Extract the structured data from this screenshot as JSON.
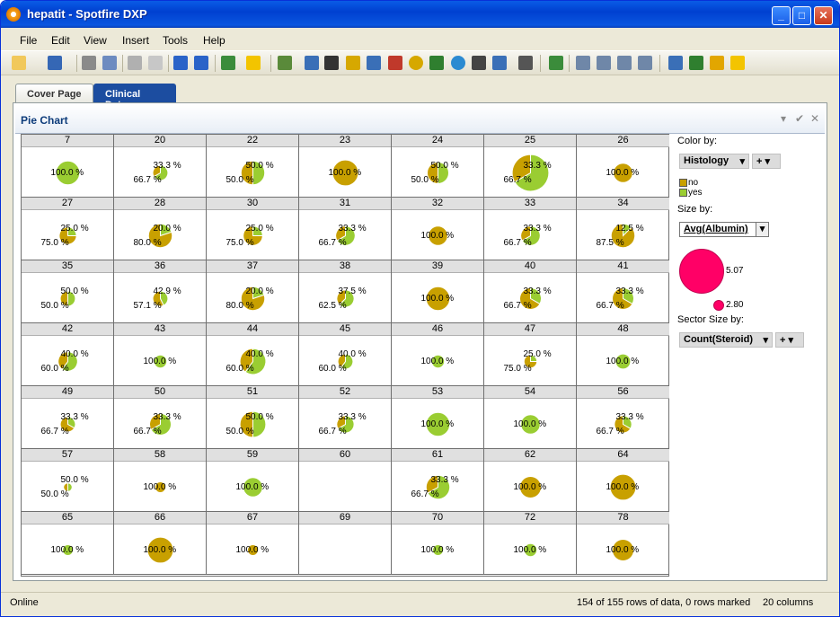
{
  "window": {
    "title": "hepatit - Spotfire DXP"
  },
  "menu": [
    "File",
    "Edit",
    "View",
    "Insert",
    "Tools",
    "Help"
  ],
  "tabs": [
    {
      "label": "Cover Page"
    },
    {
      "label": "Clinical Data"
    }
  ],
  "viz": {
    "title": "Pie Chart"
  },
  "legend": {
    "color_by": "Color by:",
    "color_column": "Histology",
    "categories": [
      {
        "label": "no",
        "color": "#c8a000"
      },
      {
        "label": "yes",
        "color": "#9acd32"
      }
    ],
    "size_by": "Size by:",
    "size_column": "Avg(Albumin)",
    "size_max": "5.07",
    "size_min": "2.80",
    "size_color": "#ff0066",
    "sector_by": "Sector Size by:",
    "sector_column": "Count(Steroid)"
  },
  "status": {
    "left": "Online",
    "rows": "154 of 155 rows of data, 0 rows marked",
    "cols": "20 columns"
  },
  "chart_data": {
    "type": "pie",
    "colors": {
      "no": "#c8a000",
      "yes": "#9acd32"
    },
    "panels": [
      {
        "id": "7",
        "no": 0,
        "yes": 100,
        "size": 0.55,
        "labels": [
          "100.0 %"
        ]
      },
      {
        "id": "20",
        "no": 33.3,
        "yes": 66.7,
        "size": 0.35,
        "labels": [
          "33.3 %",
          "66.7 %"
        ]
      },
      {
        "id": "22",
        "no": 50,
        "yes": 50,
        "size": 0.55,
        "labels": [
          "50.0 %",
          "50.0 %"
        ]
      },
      {
        "id": "23",
        "no": 100,
        "yes": 0,
        "size": 0.6,
        "labels": [
          "100.0 %"
        ]
      },
      {
        "id": "24",
        "no": 50,
        "yes": 50,
        "size": 0.5,
        "labels": [
          "50.0 %",
          "50.0 %"
        ]
      },
      {
        "id": "25",
        "no": 33.3,
        "yes": 66.7,
        "size": 0.85,
        "labels": [
          "33.3 %",
          "66.7 %"
        ]
      },
      {
        "id": "26",
        "no": 100,
        "yes": 0,
        "size": 0.45,
        "labels": [
          "100.0 %"
        ]
      },
      {
        "id": "27",
        "no": 75,
        "yes": 25,
        "size": 0.4,
        "labels": [
          "25.0 %",
          "75.0 %"
        ]
      },
      {
        "id": "28",
        "no": 80,
        "yes": 20,
        "size": 0.55,
        "labels": [
          "20.0 %",
          "80.0 %"
        ]
      },
      {
        "id": "30",
        "no": 75,
        "yes": 25,
        "size": 0.45,
        "labels": [
          "25.0 %",
          "75.0 %"
        ]
      },
      {
        "id": "31",
        "no": 33.3,
        "yes": 66.7,
        "size": 0.45,
        "labels": [
          "33.3 %",
          "66.7 %"
        ]
      },
      {
        "id": "32",
        "no": 100,
        "yes": 0,
        "size": 0.45,
        "labels": [
          "100.0 %"
        ]
      },
      {
        "id": "33",
        "no": 33.3,
        "yes": 66.7,
        "size": 0.45,
        "labels": [
          "33.3 %",
          "66.7 %"
        ]
      },
      {
        "id": "34",
        "no": 87.5,
        "yes": 12.5,
        "size": 0.55,
        "labels": [
          "12.5 %",
          "87.5 %"
        ]
      },
      {
        "id": "35",
        "no": 50,
        "yes": 50,
        "size": 0.35,
        "labels": [
          "50.0 %",
          "50.0 %"
        ]
      },
      {
        "id": "36",
        "no": 57.1,
        "yes": 42.9,
        "size": 0.35,
        "labels": [
          "42.9 %",
          "57.1 %"
        ]
      },
      {
        "id": "37",
        "no": 80,
        "yes": 20,
        "size": 0.55,
        "labels": [
          "20.0 %",
          "80.0 %"
        ]
      },
      {
        "id": "38",
        "no": 37.5,
        "yes": 62.5,
        "size": 0.4,
        "labels": [
          "37.5 %",
          "62.5 %"
        ]
      },
      {
        "id": "39",
        "no": 100,
        "yes": 0,
        "size": 0.55,
        "labels": [
          "100.0 %"
        ]
      },
      {
        "id": "40",
        "no": 66.7,
        "yes": 33.3,
        "size": 0.5,
        "labels": [
          "33.3 %",
          "66.7 %"
        ]
      },
      {
        "id": "41",
        "no": 66.7,
        "yes": 33.3,
        "size": 0.5,
        "labels": [
          "33.3 %",
          "66.7 %"
        ]
      },
      {
        "id": "42",
        "no": 40,
        "yes": 60,
        "size": 0.45,
        "labels": [
          "40.0 %",
          "60.0 %"
        ]
      },
      {
        "id": "43",
        "no": 0,
        "yes": 100,
        "size": 0.3,
        "labels": [
          "100.0 %"
        ]
      },
      {
        "id": "44",
        "no": 40,
        "yes": 60,
        "size": 0.6,
        "labels": [
          "40.0 %",
          "60.0 %"
        ]
      },
      {
        "id": "45",
        "no": 40,
        "yes": 60,
        "size": 0.35,
        "labels": [
          "40.0 %",
          "60.0 %"
        ]
      },
      {
        "id": "46",
        "no": 0,
        "yes": 100,
        "size": 0.3,
        "labels": [
          "100.0 %"
        ]
      },
      {
        "id": "47",
        "no": 75,
        "yes": 25,
        "size": 0.3,
        "labels": [
          "25.0 %",
          "75.0 %"
        ]
      },
      {
        "id": "48",
        "no": 0,
        "yes": 100,
        "size": 0.35,
        "labels": [
          "100.0 %"
        ]
      },
      {
        "id": "49",
        "no": 66.7,
        "yes": 33.3,
        "size": 0.35,
        "labels": [
          "33.3 %",
          "66.7 %"
        ]
      },
      {
        "id": "50",
        "no": 33.3,
        "yes": 66.7,
        "size": 0.5,
        "labels": [
          "33.3 %",
          "66.7 %"
        ]
      },
      {
        "id": "51",
        "no": 50,
        "yes": 50,
        "size": 0.6,
        "labels": [
          "50.0 %",
          "50.0 %"
        ]
      },
      {
        "id": "52",
        "no": 33.3,
        "yes": 66.7,
        "size": 0.4,
        "labels": [
          "33.3 %",
          "66.7 %"
        ]
      },
      {
        "id": "53",
        "no": 0,
        "yes": 100,
        "size": 0.55,
        "labels": [
          "100.0 %"
        ]
      },
      {
        "id": "54",
        "no": 0,
        "yes": 100,
        "size": 0.45,
        "labels": [
          "100.0 %"
        ]
      },
      {
        "id": "56",
        "no": 66.7,
        "yes": 33.3,
        "size": 0.4,
        "labels": [
          "33.3 %",
          "66.7 %"
        ]
      },
      {
        "id": "57",
        "no": 50,
        "yes": 50,
        "size": 0.2,
        "labels": [
          "50.0 %",
          "50.0 %"
        ]
      },
      {
        "id": "58",
        "no": 100,
        "yes": 0,
        "size": 0.25,
        "labels": [
          "100.0 %"
        ]
      },
      {
        "id": "59",
        "no": 0,
        "yes": 100,
        "size": 0.45,
        "labels": [
          "100.0 %"
        ]
      },
      {
        "id": "60",
        "no": 0,
        "yes": 0,
        "size": 0,
        "labels": []
      },
      {
        "id": "61",
        "no": 33.3,
        "yes": 66.7,
        "size": 0.55,
        "labels": [
          "33.3 %",
          "66.7 %"
        ]
      },
      {
        "id": "62",
        "no": 100,
        "yes": 0,
        "size": 0.5,
        "labels": [
          "100.0 %"
        ]
      },
      {
        "id": "64",
        "no": 100,
        "yes": 0,
        "size": 0.6,
        "labels": [
          "100.0 %"
        ]
      },
      {
        "id": "65",
        "no": 0,
        "yes": 100,
        "size": 0.25,
        "labels": [
          "100.0 %"
        ]
      },
      {
        "id": "66",
        "no": 100,
        "yes": 0,
        "size": 0.6,
        "labels": [
          "100.0 %"
        ]
      },
      {
        "id": "67",
        "no": 100,
        "yes": 0,
        "size": 0.25,
        "labels": [
          "100.0 %"
        ]
      },
      {
        "id": "69",
        "no": 0,
        "yes": 0,
        "size": 0,
        "labels": []
      },
      {
        "id": "70",
        "no": 0,
        "yes": 100,
        "size": 0.25,
        "labels": [
          "100.0 %"
        ]
      },
      {
        "id": "72",
        "no": 0,
        "yes": 100,
        "size": 0.3,
        "labels": [
          "100.0 %"
        ]
      },
      {
        "id": "78",
        "no": 100,
        "yes": 0,
        "size": 0.5,
        "labels": [
          "100.0 %"
        ]
      }
    ]
  }
}
